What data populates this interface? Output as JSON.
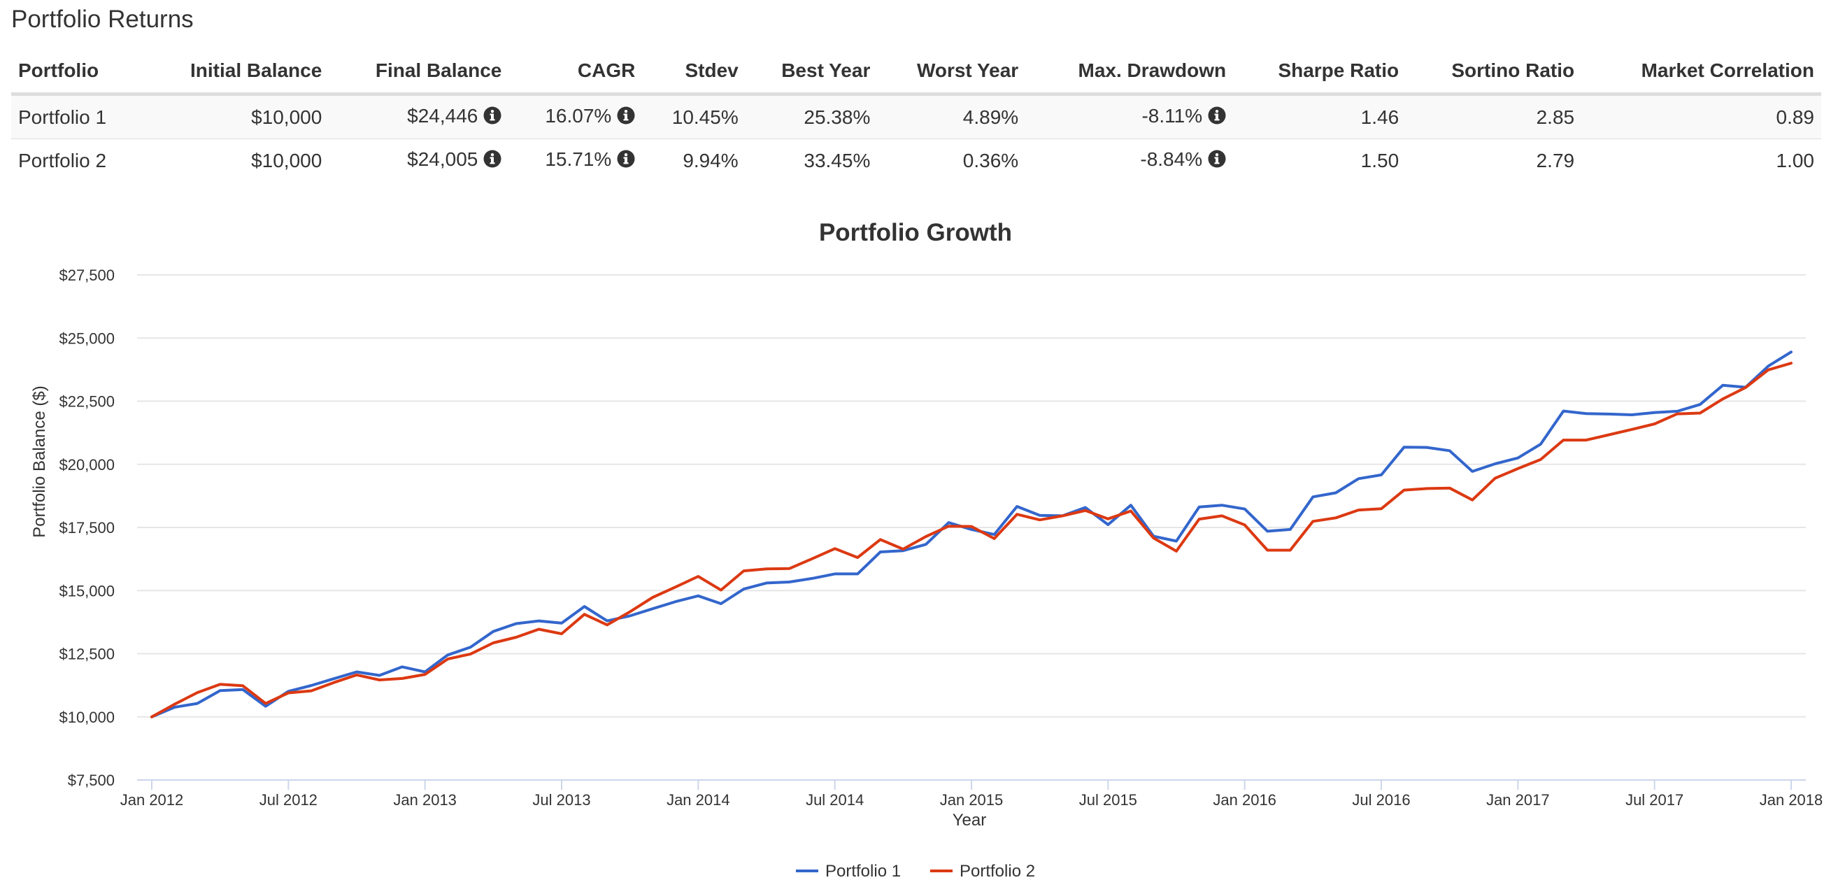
{
  "page": {
    "title": "Portfolio Returns"
  },
  "table": {
    "headers": [
      "Portfolio",
      "Initial Balance",
      "Final Balance",
      "CAGR",
      "Stdev",
      "Best Year",
      "Worst Year",
      "Max. Drawdown",
      "Sharpe Ratio",
      "Sortino Ratio",
      "Market Correlation"
    ],
    "rows": [
      {
        "portfolio": "Portfolio 1",
        "initial": "$10,000",
        "final": "$24,446",
        "cagr": "16.07%",
        "stdev": "10.45%",
        "best": "25.38%",
        "worst": "4.89%",
        "drawdown": "-8.11%",
        "sharpe": "1.46",
        "sortino": "2.85",
        "correlation": "0.89"
      },
      {
        "portfolio": "Portfolio 2",
        "initial": "$10,000",
        "final": "$24,005",
        "cagr": "15.71%",
        "stdev": "9.94%",
        "best": "33.45%",
        "worst": "0.36%",
        "drawdown": "-8.84%",
        "sharpe": "1.50",
        "sortino": "2.79",
        "correlation": "1.00"
      }
    ],
    "info_icon": "info-circle-icon"
  },
  "chart_data": {
    "type": "line",
    "title": "Portfolio Growth",
    "xlabel": "Year",
    "ylabel": "Portfolio Balance ($)",
    "ylim": [
      7500,
      27500
    ],
    "yticks": [
      7500,
      10000,
      12500,
      15000,
      17500,
      20000,
      22500,
      25000,
      27500
    ],
    "ytick_labels": [
      "$7,500",
      "$10,000",
      "$12,500",
      "$15,000",
      "$17,500",
      "$20,000",
      "$22,500",
      "$25,000",
      "$27,500"
    ],
    "xlim": [
      "2012-01",
      "2018-01"
    ],
    "xtick_labels": [
      "Jan 2012",
      "Jul 2012",
      "Jan 2013",
      "Jul 2013",
      "Jan 2014",
      "Jul 2014",
      "Jan 2015",
      "Jul 2015",
      "Jan 2016",
      "Jul 2016",
      "Jan 2017",
      "Jul 2017",
      "Jan 2018"
    ],
    "x": [
      "2012-01",
      "2012-02",
      "2012-03",
      "2012-04",
      "2012-05",
      "2012-06",
      "2012-07",
      "2012-08",
      "2012-09",
      "2012-10",
      "2012-11",
      "2012-12",
      "2013-01",
      "2013-02",
      "2013-03",
      "2013-04",
      "2013-05",
      "2013-06",
      "2013-07",
      "2013-08",
      "2013-09",
      "2013-10",
      "2013-11",
      "2013-12",
      "2014-01",
      "2014-02",
      "2014-03",
      "2014-04",
      "2014-05",
      "2014-06",
      "2014-07",
      "2014-08",
      "2014-09",
      "2014-10",
      "2014-11",
      "2014-12",
      "2015-01",
      "2015-02",
      "2015-03",
      "2015-04",
      "2015-05",
      "2015-06",
      "2015-07",
      "2015-08",
      "2015-09",
      "2015-10",
      "2015-11",
      "2015-12",
      "2016-01",
      "2016-02",
      "2016-03",
      "2016-04",
      "2016-05",
      "2016-06",
      "2016-07",
      "2016-08",
      "2016-09",
      "2016-10",
      "2016-11",
      "2016-12",
      "2017-01",
      "2017-02",
      "2017-03",
      "2017-04",
      "2017-05",
      "2017-06",
      "2017-07",
      "2017-08",
      "2017-09",
      "2017-10",
      "2017-11",
      "2017-12",
      "2018-01"
    ],
    "series": [
      {
        "name": "Portfolio 1",
        "color": "#3366cc",
        "values": [
          10000,
          10380,
          10530,
          11040,
          11080,
          10420,
          11010,
          11240,
          11510,
          11780,
          11640,
          11980,
          11780,
          12450,
          12760,
          13380,
          13690,
          13800,
          13710,
          14370,
          13800,
          14000,
          14280,
          14560,
          14790,
          14480,
          15060,
          15300,
          15340,
          15480,
          15660,
          15660,
          16530,
          16580,
          16830,
          17690,
          17420,
          17220,
          18330,
          17980,
          17960,
          18290,
          17610,
          18380,
          17150,
          16960,
          18310,
          18380,
          18230,
          17350,
          17420,
          18710,
          18870,
          19430,
          19580,
          20680,
          20670,
          20540,
          19720,
          20020,
          20250,
          20800,
          22110,
          22010,
          21990,
          21960,
          22050,
          22100,
          22370,
          23130,
          23050,
          23890,
          24446
        ]
      },
      {
        "name": "Portfolio 2",
        "color": "#dc3912",
        "values": [
          10000,
          10500,
          10960,
          11290,
          11230,
          10530,
          10950,
          11030,
          11360,
          11660,
          11460,
          11520,
          11680,
          12290,
          12490,
          12930,
          13150,
          13470,
          13290,
          14060,
          13640,
          14160,
          14730,
          15140,
          15560,
          15020,
          15780,
          15860,
          15870,
          16260,
          16660,
          16310,
          17020,
          16640,
          17140,
          17550,
          17540,
          17060,
          18020,
          17800,
          17960,
          18170,
          17840,
          18150,
          17080,
          16560,
          17830,
          17960,
          17600,
          16600,
          16600,
          17740,
          17880,
          18190,
          18240,
          18980,
          19040,
          19060,
          18590,
          19450,
          19830,
          20190,
          20960,
          20960,
          21170,
          21380,
          21600,
          22000,
          22030,
          22590,
          23040,
          23740,
          24005
        ]
      }
    ],
    "legend_position": "bottom-center",
    "grid": true
  }
}
